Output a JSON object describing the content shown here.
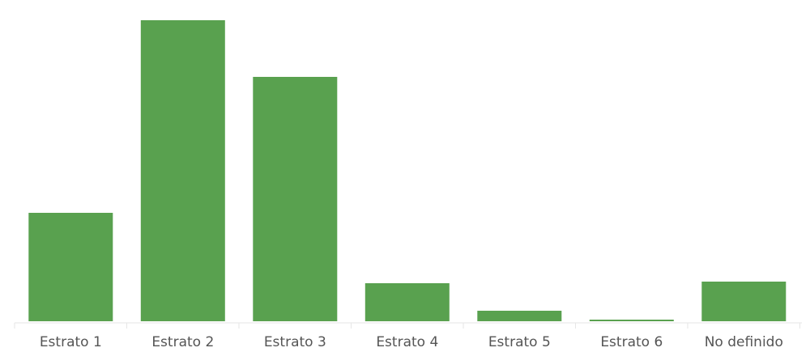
{
  "chart_data": {
    "type": "bar",
    "categories": [
      "Estrato 1",
      "Estrato 2",
      "Estrato 3",
      "Estrato 4",
      "Estrato 5",
      "Estrato 6",
      "No definido"
    ],
    "values": [
      134,
      372,
      302,
      47,
      13,
      2,
      49
    ],
    "ylim": [
      0,
      380
    ],
    "title": "",
    "xlabel": "",
    "ylabel": "",
    "grid": false,
    "legend": "none",
    "bar_color": "#59a14f"
  }
}
